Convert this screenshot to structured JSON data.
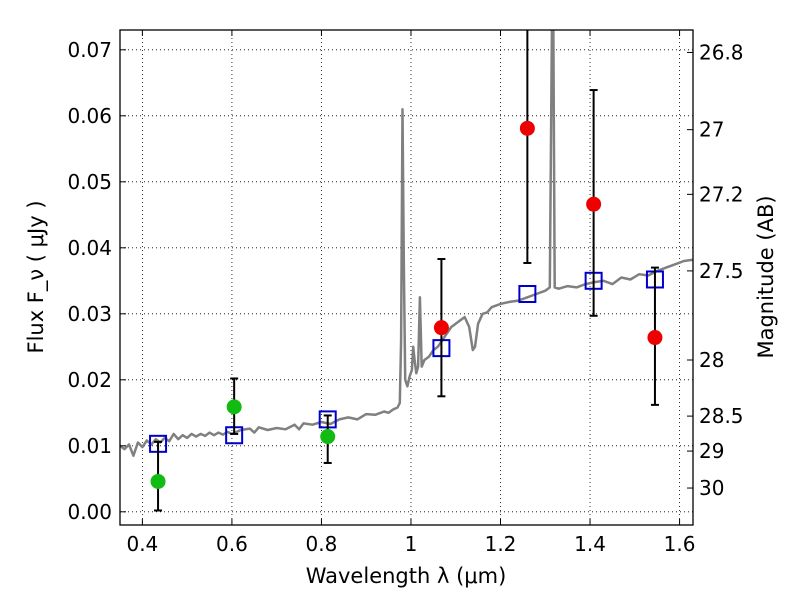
{
  "chart_data": {
    "type": "scatter",
    "xlabel": "Wavelength  λ (μm)",
    "ylabel": "Flux  F_ν  ( μJy )",
    "y2label": "Magnitude (AB)",
    "xlim": [
      0.35,
      1.63
    ],
    "ylim": [
      -0.002,
      0.073
    ],
    "xticks": [
      0.4,
      0.6,
      0.8,
      1.0,
      1.2,
      1.4,
      1.6
    ],
    "xtick_labels": [
      "0.4",
      "0.6",
      "0.8",
      "1",
      "1.2",
      "1.4",
      "1.6"
    ],
    "yticks": [
      0.0,
      0.01,
      0.02,
      0.03,
      0.04,
      0.05,
      0.06,
      0.07
    ],
    "ytick_labels": [
      "0.00",
      "0.01",
      "0.02",
      "0.03",
      "0.04",
      "0.05",
      "0.06",
      "0.07"
    ],
    "y2ticks": [
      {
        "label": "26.8",
        "flux": 0.0696
      },
      {
        "label": "27",
        "flux": 0.0579
      },
      {
        "label": "27.2",
        "flux": 0.0481
      },
      {
        "label": "27.5",
        "flux": 0.0365
      },
      {
        "label": "28",
        "flux": 0.023
      },
      {
        "label": "28.5",
        "flux": 0.0145
      },
      {
        "label": "29",
        "flux": 0.0092
      },
      {
        "label": "30",
        "flux": 0.0036
      }
    ],
    "grid": true,
    "colors": {
      "spectrum": "#808080",
      "model": "#0000cc",
      "green": "#11bb11",
      "red": "#ee0000",
      "errorbar": "#000000"
    },
    "series": [
      {
        "style": "line",
        "color": "#808080",
        "points": [
          [
            0.35,
            0.01
          ],
          [
            0.36,
            0.0095
          ],
          [
            0.37,
            0.0102
          ],
          [
            0.38,
            0.0085
          ],
          [
            0.39,
            0.0105
          ],
          [
            0.4,
            0.0098
          ],
          [
            0.41,
            0.0108
          ],
          [
            0.42,
            0.0102
          ],
          [
            0.43,
            0.011
          ],
          [
            0.44,
            0.0105
          ],
          [
            0.45,
            0.0112
          ],
          [
            0.46,
            0.0107
          ],
          [
            0.47,
            0.0118
          ],
          [
            0.48,
            0.011
          ],
          [
            0.49,
            0.0116
          ],
          [
            0.5,
            0.0112
          ],
          [
            0.51,
            0.0118
          ],
          [
            0.52,
            0.0114
          ],
          [
            0.53,
            0.0118
          ],
          [
            0.54,
            0.0115
          ],
          [
            0.55,
            0.012
          ],
          [
            0.56,
            0.0116
          ],
          [
            0.57,
            0.012
          ],
          [
            0.58,
            0.0117
          ],
          [
            0.59,
            0.0121
          ],
          [
            0.6,
            0.0118
          ],
          [
            0.62,
            0.0124
          ],
          [
            0.64,
            0.0126
          ],
          [
            0.65,
            0.012
          ],
          [
            0.66,
            0.0128
          ],
          [
            0.68,
            0.0124
          ],
          [
            0.7,
            0.0127
          ],
          [
            0.72,
            0.0125
          ],
          [
            0.74,
            0.0132
          ],
          [
            0.75,
            0.0125
          ],
          [
            0.76,
            0.0134
          ],
          [
            0.78,
            0.0132
          ],
          [
            0.8,
            0.0136
          ],
          [
            0.82,
            0.0133
          ],
          [
            0.84,
            0.014
          ],
          [
            0.86,
            0.0143
          ],
          [
            0.88,
            0.014
          ],
          [
            0.9,
            0.0148
          ],
          [
            0.92,
            0.0147
          ],
          [
            0.94,
            0.0152
          ],
          [
            0.95,
            0.015
          ],
          [
            0.96,
            0.0155
          ],
          [
            0.97,
            0.0158
          ],
          [
            0.975,
            0.0165
          ],
          [
            0.978,
            0.026
          ],
          [
            0.981,
            0.061
          ],
          [
            0.984,
            0.038
          ],
          [
            0.987,
            0.02
          ],
          [
            0.992,
            0.019
          ],
          [
            0.997,
            0.0205
          ],
          [
            1.002,
            0.0215
          ],
          [
            1.005,
            0.025
          ],
          [
            1.008,
            0.023
          ],
          [
            1.012,
            0.021
          ],
          [
            1.016,
            0.022
          ],
          [
            1.02,
            0.0325
          ],
          [
            1.024,
            0.022
          ],
          [
            1.03,
            0.023
          ],
          [
            1.04,
            0.0235
          ],
          [
            1.05,
            0.0245
          ],
          [
            1.06,
            0.025
          ],
          [
            1.07,
            0.026
          ],
          [
            1.08,
            0.027
          ],
          [
            1.09,
            0.028
          ],
          [
            1.1,
            0.0285
          ],
          [
            1.11,
            0.029
          ],
          [
            1.12,
            0.0295
          ],
          [
            1.13,
            0.028
          ],
          [
            1.138,
            0.0245
          ],
          [
            1.143,
            0.025
          ],
          [
            1.15,
            0.0285
          ],
          [
            1.16,
            0.03
          ],
          [
            1.17,
            0.0302
          ],
          [
            1.18,
            0.031
          ],
          [
            1.2,
            0.0315
          ],
          [
            1.22,
            0.0318
          ],
          [
            1.24,
            0.032
          ],
          [
            1.26,
            0.0325
          ],
          [
            1.28,
            0.033
          ],
          [
            1.3,
            0.0335
          ],
          [
            1.31,
            0.034
          ],
          [
            1.315,
            0.075
          ],
          [
            1.318,
            0.075
          ],
          [
            1.321,
            0.034
          ],
          [
            1.33,
            0.0338
          ],
          [
            1.35,
            0.0342
          ],
          [
            1.37,
            0.034
          ],
          [
            1.39,
            0.0345
          ],
          [
            1.41,
            0.0348
          ],
          [
            1.43,
            0.035
          ],
          [
            1.45,
            0.0345
          ],
          [
            1.47,
            0.0355
          ],
          [
            1.49,
            0.0352
          ],
          [
            1.51,
            0.036
          ],
          [
            1.53,
            0.0358
          ],
          [
            1.55,
            0.0365
          ],
          [
            1.57,
            0.037
          ],
          [
            1.59,
            0.0375
          ],
          [
            1.61,
            0.038
          ],
          [
            1.63,
            0.0382
          ]
        ]
      },
      {
        "style": "open-square",
        "color": "#0000cc",
        "points": [
          [
            0.435,
            0.0103
          ],
          [
            0.605,
            0.0116
          ],
          [
            0.814,
            0.014
          ],
          [
            1.068,
            0.0248
          ],
          [
            1.26,
            0.033
          ],
          [
            1.408,
            0.035
          ],
          [
            1.545,
            0.0352
          ]
        ]
      },
      {
        "style": "filled-circle",
        "color": "#11bb11",
        "points": [
          {
            "x": 0.435,
            "y": 0.0046,
            "yerr_low": 0.0002,
            "yerr_high": 0.0106
          },
          {
            "x": 0.605,
            "y": 0.0159,
            "yerr_low": 0.0118,
            "yerr_high": 0.0202
          },
          {
            "x": 0.814,
            "y": 0.0114,
            "yerr_low": 0.0074,
            "yerr_high": 0.0146
          }
        ]
      },
      {
        "style": "filled-circle",
        "color": "#ee0000",
        "points": [
          {
            "x": 1.068,
            "y": 0.0279,
            "yerr_low": 0.0175,
            "yerr_high": 0.0383
          },
          {
            "x": 1.26,
            "y": 0.0581,
            "yerr_low": 0.0377,
            "yerr_high": 0.074
          },
          {
            "x": 1.408,
            "y": 0.0466,
            "yerr_low": 0.0297,
            "yerr_high": 0.0639
          },
          {
            "x": 1.545,
            "y": 0.0264,
            "yerr_low": 0.0162,
            "yerr_high": 0.037
          }
        ]
      }
    ]
  }
}
